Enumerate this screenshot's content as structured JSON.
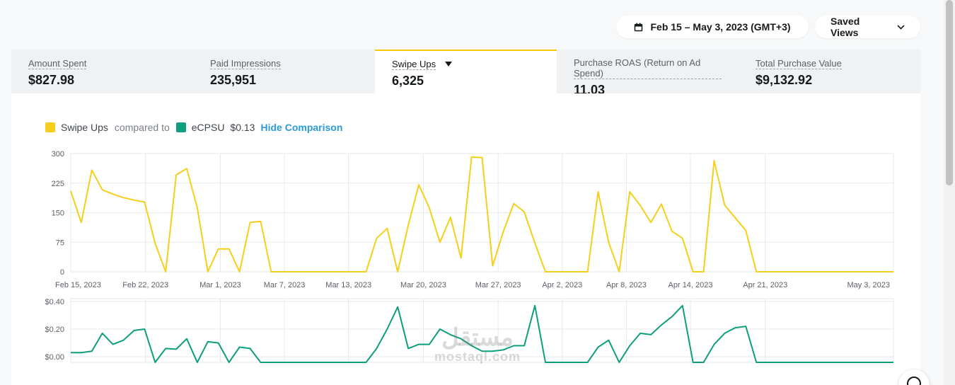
{
  "header": {
    "date_range_label": "Feb 15 – May 3, 2023 (GMT+3)",
    "saved_views_label": "Saved Views"
  },
  "metrics": [
    {
      "label": "Amount Spent",
      "value": "$827.98"
    },
    {
      "label": "Paid Impressions",
      "value": "235,951"
    },
    {
      "label": "Swipe Ups",
      "value": "6,325",
      "active": true
    },
    {
      "label": "Purchase ROAS (Return on Ad Spend)",
      "value": "11.03"
    },
    {
      "label": "Total Purchase Value",
      "value": "$9,132.92"
    }
  ],
  "legend": {
    "primary": "Swipe Ups",
    "compared_to": "compared to",
    "secondary": "eCPSU",
    "secondary_value": "$0.13",
    "hide_label": "Hide Comparison"
  },
  "colors": {
    "primary": "#f5cf1a",
    "secondary": "#0e9e7c",
    "accent_link": "#2b9bd6",
    "active_tab_border": "#f5c800"
  },
  "watermark": {
    "arabic": "مستقل",
    "latin": "mostaql.com"
  },
  "chart_data": [
    {
      "type": "line",
      "series": [
        {
          "name": "Swipe Ups",
          "values": [
            205,
            125,
            258,
            208,
            197,
            188,
            182,
            177,
            72,
            0,
            246,
            262,
            162,
            0,
            58,
            58,
            0,
            125,
            128,
            0,
            0,
            0,
            0,
            0,
            0,
            0,
            0,
            0,
            0,
            85,
            110,
            0,
            118,
            221,
            162,
            75,
            138,
            35,
            291,
            290,
            15,
            101,
            173,
            152,
            73,
            0,
            0,
            0,
            0,
            0,
            203,
            75,
            0,
            203,
            168,
            125,
            172,
            103,
            85,
            0,
            0,
            282,
            169,
            137,
            105,
            0,
            0,
            0,
            0,
            0,
            0,
            0,
            0,
            0,
            0,
            0,
            0,
            0,
            0
          ]
        }
      ],
      "x_start": "2023-02-15",
      "x_end": "2023-05-03",
      "tick_labels": [
        "Feb 15, 2023",
        "Feb 22, 2023",
        "Mar 1, 2023",
        "Mar 7, 2023",
        "Mar 13, 2023",
        "Mar 20, 2023",
        "Mar 27, 2023",
        "Apr 2, 2023",
        "Apr 8, 2023",
        "Apr 14, 2023",
        "Apr 21, 2023",
        "May 3, 2023"
      ],
      "yticks": [
        "0",
        "75",
        "150",
        "225",
        "300"
      ],
      "ylim": [
        0,
        300
      ],
      "grid": true
    },
    {
      "type": "line",
      "series": [
        {
          "name": "eCPSU",
          "values": [
            0.03,
            0.03,
            0.04,
            0.17,
            0.09,
            0.12,
            0.19,
            0.2,
            -0.04,
            0.06,
            0.055,
            0.13,
            -0.04,
            0.11,
            0.1,
            -0.04,
            0.07,
            0.06,
            -0.04,
            -0.04,
            -0.04,
            -0.04,
            -0.04,
            -0.04,
            -0.04,
            -0.04,
            -0.04,
            -0.04,
            -0.04,
            0.06,
            0.2,
            0.36,
            0.06,
            0.09,
            0.09,
            0.2,
            0.16,
            0.13,
            0.08,
            0.04,
            0.04,
            0.05,
            0.08,
            0.08,
            0.37,
            -0.04,
            -0.04,
            -0.04,
            -0.04,
            -0.04,
            0.07,
            0.12,
            -0.04,
            0.08,
            0.17,
            0.16,
            0.23,
            0.29,
            0.37,
            -0.04,
            -0.04,
            0.09,
            0.17,
            0.21,
            0.22,
            -0.04,
            -0.04,
            -0.04,
            -0.04,
            -0.04,
            -0.04,
            -0.04,
            -0.04,
            -0.04,
            -0.04,
            -0.04,
            -0.04,
            -0.04,
            -0.04
          ]
        }
      ],
      "yticks": [
        "$0.00",
        "$0.20",
        "$0.40"
      ],
      "ylim": [
        -0.04,
        0.42
      ],
      "grid": true
    }
  ]
}
